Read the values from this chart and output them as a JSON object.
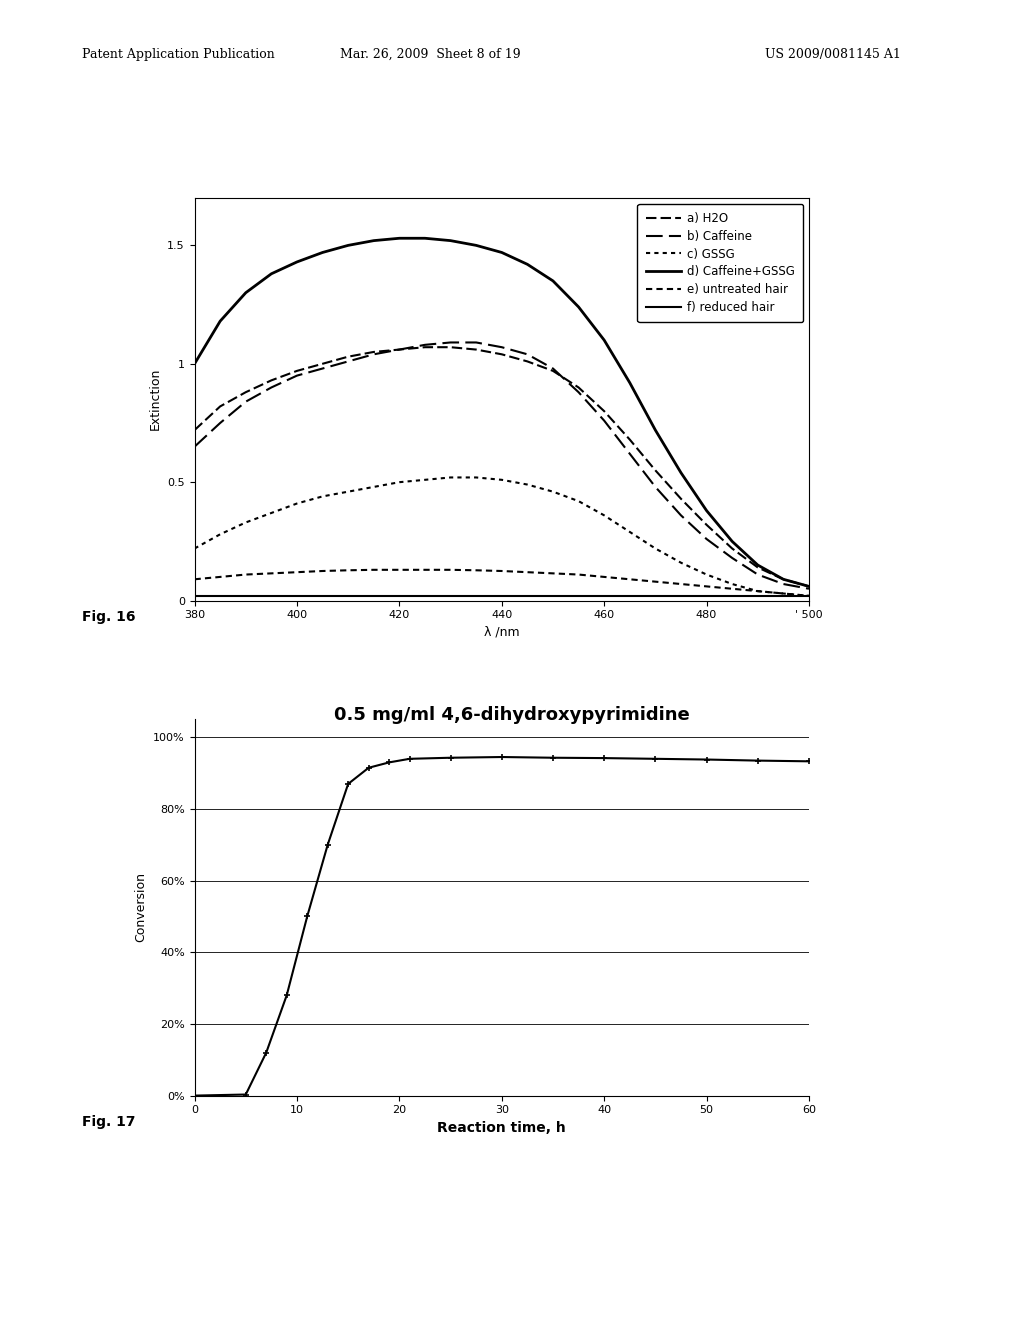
{
  "fig16": {
    "xlabel": "λ /nm",
    "ylabel": "Extinction",
    "xlim": [
      380,
      500
    ],
    "ylim": [
      0,
      1.7
    ],
    "yticks": [
      0,
      0.5,
      1,
      1.5
    ],
    "xticks": [
      380,
      400,
      420,
      440,
      460,
      480,
      500
    ],
    "x_tick_labels": [
      "380",
      "400",
      "420",
      "440",
      "460",
      "480",
      "' 500"
    ],
    "series": {
      "a_H2O": {
        "x": [
          380,
          385,
          390,
          395,
          400,
          405,
          410,
          415,
          420,
          425,
          430,
          435,
          440,
          445,
          450,
          455,
          460,
          465,
          470,
          475,
          480,
          485,
          490,
          495,
          500
        ],
        "y": [
          0.72,
          0.82,
          0.88,
          0.93,
          0.97,
          1.0,
          1.03,
          1.05,
          1.06,
          1.07,
          1.07,
          1.06,
          1.04,
          1.01,
          0.97,
          0.9,
          0.8,
          0.68,
          0.55,
          0.43,
          0.32,
          0.22,
          0.14,
          0.09,
          0.06
        ],
        "label": "  a) H2O"
      },
      "b_Caffeine": {
        "x": [
          380,
          385,
          390,
          395,
          400,
          405,
          410,
          415,
          420,
          425,
          430,
          435,
          440,
          445,
          450,
          455,
          460,
          465,
          470,
          475,
          480,
          485,
          490,
          495,
          500
        ],
        "y": [
          0.65,
          0.75,
          0.84,
          0.9,
          0.95,
          0.98,
          1.01,
          1.04,
          1.06,
          1.08,
          1.09,
          1.09,
          1.07,
          1.04,
          0.98,
          0.88,
          0.76,
          0.62,
          0.48,
          0.36,
          0.26,
          0.18,
          0.11,
          0.07,
          0.05
        ],
        "label": "  b) Caffeine"
      },
      "c_GSSG": {
        "x": [
          380,
          385,
          390,
          395,
          400,
          405,
          410,
          415,
          420,
          425,
          430,
          435,
          440,
          445,
          450,
          455,
          460,
          465,
          470,
          475,
          480,
          485,
          490,
          495,
          500
        ],
        "y": [
          0.22,
          0.28,
          0.33,
          0.37,
          0.41,
          0.44,
          0.46,
          0.48,
          0.5,
          0.51,
          0.52,
          0.52,
          0.51,
          0.49,
          0.46,
          0.42,
          0.36,
          0.29,
          0.22,
          0.16,
          0.11,
          0.07,
          0.04,
          0.03,
          0.02
        ],
        "label": "  ··· c) GSSG"
      },
      "d_CaffeineGSSG": {
        "x": [
          380,
          385,
          390,
          395,
          400,
          405,
          410,
          415,
          420,
          425,
          430,
          435,
          440,
          445,
          450,
          455,
          460,
          465,
          470,
          475,
          480,
          485,
          490,
          495,
          500
        ],
        "y": [
          1.0,
          1.18,
          1.3,
          1.38,
          1.43,
          1.47,
          1.5,
          1.52,
          1.53,
          1.53,
          1.52,
          1.5,
          1.47,
          1.42,
          1.35,
          1.24,
          1.1,
          0.92,
          0.72,
          0.54,
          0.38,
          0.25,
          0.15,
          0.09,
          0.06
        ],
        "label": "  d) Caffeine+GSSG"
      },
      "e_untreated": {
        "x": [
          380,
          385,
          390,
          395,
          400,
          405,
          410,
          415,
          420,
          425,
          430,
          435,
          440,
          445,
          450,
          455,
          460,
          465,
          470,
          475,
          480,
          485,
          490,
          495,
          500
        ],
        "y": [
          0.09,
          0.1,
          0.11,
          0.115,
          0.12,
          0.125,
          0.128,
          0.13,
          0.13,
          0.13,
          0.13,
          0.128,
          0.125,
          0.12,
          0.115,
          0.11,
          0.1,
          0.09,
          0.08,
          0.07,
          0.06,
          0.05,
          0.04,
          0.03,
          0.02
        ],
        "label": "  ···· e) untreated hair"
      },
      "f_reduced": {
        "x": [
          380,
          385,
          390,
          395,
          400,
          405,
          410,
          415,
          420,
          425,
          430,
          435,
          440,
          445,
          450,
          455,
          460,
          465,
          470,
          475,
          480,
          485,
          490,
          495,
          500
        ],
        "y": [
          0.018,
          0.018,
          0.018,
          0.018,
          0.018,
          0.018,
          0.018,
          0.018,
          0.018,
          0.018,
          0.018,
          0.018,
          0.018,
          0.018,
          0.018,
          0.018,
          0.018,
          0.018,
          0.018,
          0.018,
          0.018,
          0.018,
          0.018,
          0.018,
          0.018
        ],
        "label": "  — f) reduced hair"
      }
    }
  },
  "fig17": {
    "title": "0.5 mg/ml 4,6-dihydroxypyrimidine",
    "xlabel": "Reaction time, h",
    "ylabel": "Conversion",
    "xlim": [
      0,
      60
    ],
    "ylim": [
      0,
      1.05
    ],
    "xticks": [
      0,
      10,
      20,
      30,
      40,
      50,
      60
    ],
    "ytick_vals": [
      0.0,
      0.2,
      0.4,
      0.6,
      0.8,
      1.0
    ],
    "ytick_labels": [
      "0%",
      "20%",
      "40%",
      "60%",
      "80%",
      "100%"
    ],
    "curve_x": [
      0,
      5,
      7,
      9,
      11,
      13,
      15,
      17,
      19,
      21,
      25,
      30,
      35,
      40,
      45,
      50,
      55,
      60
    ],
    "curve_y": [
      0.0,
      0.003,
      0.12,
      0.28,
      0.5,
      0.7,
      0.87,
      0.915,
      0.93,
      0.94,
      0.943,
      0.945,
      0.943,
      0.942,
      0.94,
      0.938,
      0.935,
      0.933
    ]
  },
  "header_left": "Patent Application Publication",
  "header_mid": "Mar. 26, 2009  Sheet 8 of 19",
  "header_right": "US 2009/0081145 A1",
  "fig16_label": "Fig. 16",
  "fig17_label": "Fig. 17",
  "background_color": "#ffffff"
}
